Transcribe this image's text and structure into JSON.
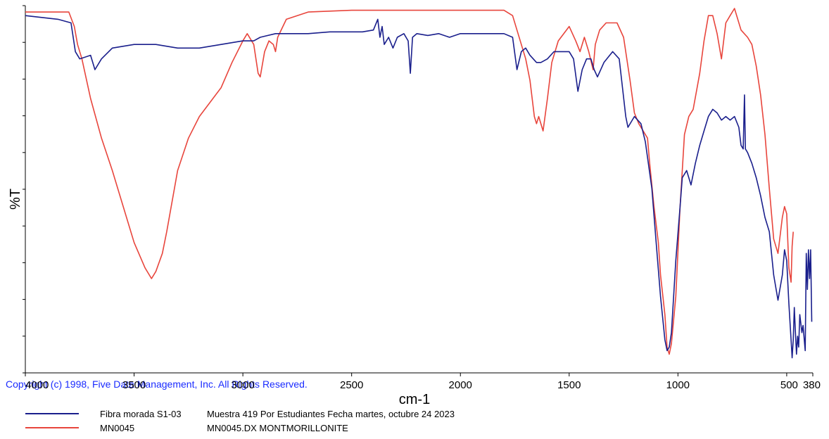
{
  "chart_data": {
    "type": "line",
    "xlabel": "cm-1",
    "ylabel": "%T",
    "xlim": [
      4000,
      380
    ],
    "x_ticks": [
      4000,
      3500,
      3000,
      2500,
      2000,
      1500,
      1000,
      500,
      380
    ],
    "copyright": "Copyright (c) 1998, Five Data Management, Inc. All Rights Reserved.",
    "series": [
      {
        "name": "Fibra morada S1-03",
        "description": "Muestra 419 Por Estudiantes Fecha martes, octubre 24 2023",
        "color": "#1a1f8c",
        "points": [
          [
            4000,
            98
          ],
          [
            3850,
            97
          ],
          [
            3790,
            96
          ],
          [
            3770,
            88
          ],
          [
            3750,
            86
          ],
          [
            3700,
            87
          ],
          [
            3680,
            83
          ],
          [
            3650,
            86
          ],
          [
            3600,
            89
          ],
          [
            3500,
            90
          ],
          [
            3400,
            90
          ],
          [
            3300,
            89
          ],
          [
            3200,
            89
          ],
          [
            3100,
            90
          ],
          [
            3000,
            91
          ],
          [
            2950,
            91
          ],
          [
            2920,
            92
          ],
          [
            2850,
            93
          ],
          [
            2800,
            93
          ],
          [
            2700,
            93
          ],
          [
            2600,
            93.5
          ],
          [
            2450,
            93.5
          ],
          [
            2400,
            94
          ],
          [
            2380,
            97
          ],
          [
            2370,
            92
          ],
          [
            2360,
            95
          ],
          [
            2350,
            90
          ],
          [
            2330,
            92
          ],
          [
            2310,
            89
          ],
          [
            2290,
            92
          ],
          [
            2260,
            93
          ],
          [
            2240,
            91
          ],
          [
            2230,
            82
          ],
          [
            2220,
            92
          ],
          [
            2200,
            93
          ],
          [
            2150,
            92.5
          ],
          [
            2100,
            93
          ],
          [
            2050,
            92
          ],
          [
            2000,
            93
          ],
          [
            1900,
            93
          ],
          [
            1800,
            93
          ],
          [
            1760,
            92
          ],
          [
            1740,
            83
          ],
          [
            1720,
            88
          ],
          [
            1700,
            89
          ],
          [
            1680,
            87
          ],
          [
            1650,
            85
          ],
          [
            1630,
            85
          ],
          [
            1600,
            86
          ],
          [
            1570,
            88
          ],
          [
            1530,
            88
          ],
          [
            1500,
            88
          ],
          [
            1480,
            86
          ],
          [
            1460,
            77
          ],
          [
            1440,
            83
          ],
          [
            1420,
            86
          ],
          [
            1400,
            86
          ],
          [
            1385,
            83
          ],
          [
            1370,
            81
          ],
          [
            1340,
            85
          ],
          [
            1300,
            88
          ],
          [
            1270,
            86
          ],
          [
            1240,
            70
          ],
          [
            1230,
            67
          ],
          [
            1200,
            70
          ],
          [
            1170,
            68
          ],
          [
            1150,
            63
          ],
          [
            1120,
            50
          ],
          [
            1100,
            35
          ],
          [
            1080,
            20
          ],
          [
            1060,
            8
          ],
          [
            1050,
            5
          ],
          [
            1040,
            6
          ],
          [
            1030,
            10
          ],
          [
            1010,
            30
          ],
          [
            990,
            45
          ],
          [
            980,
            53
          ],
          [
            960,
            55
          ],
          [
            940,
            51
          ],
          [
            920,
            57
          ],
          [
            900,
            62
          ],
          [
            880,
            66
          ],
          [
            860,
            70
          ],
          [
            840,
            72
          ],
          [
            820,
            71
          ],
          [
            800,
            69
          ],
          [
            780,
            70
          ],
          [
            760,
            69
          ],
          [
            740,
            70
          ],
          [
            720,
            67
          ],
          [
            710,
            62
          ],
          [
            700,
            61
          ],
          [
            694,
            76
          ],
          [
            690,
            61
          ],
          [
            680,
            60
          ],
          [
            660,
            57
          ],
          [
            640,
            53
          ],
          [
            620,
            48
          ],
          [
            600,
            42
          ],
          [
            580,
            38
          ],
          [
            560,
            26
          ],
          [
            540,
            19
          ],
          [
            520,
            26
          ],
          [
            510,
            33
          ],
          [
            500,
            30
          ],
          [
            490,
            18
          ],
          [
            480,
            8
          ],
          [
            475,
            3
          ],
          [
            470,
            8
          ],
          [
            465,
            17
          ],
          [
            460,
            10
          ],
          [
            455,
            4
          ],
          [
            450,
            9
          ],
          [
            445,
            6
          ],
          [
            440,
            15
          ],
          [
            430,
            10
          ],
          [
            425,
            12
          ],
          [
            415,
            5
          ],
          [
            410,
            32
          ],
          [
            405,
            22
          ],
          [
            400,
            33
          ],
          [
            395,
            25
          ],
          [
            390,
            33
          ],
          [
            385,
            13
          ]
        ]
      },
      {
        "name": "MN0045",
        "description": "MN0045.DX  MONTMORILLONITE",
        "color": "#e8453c",
        "points": [
          [
            4000,
            99
          ],
          [
            3850,
            99
          ],
          [
            3800,
            99
          ],
          [
            3775,
            95
          ],
          [
            3760,
            90
          ],
          [
            3740,
            86
          ],
          [
            3700,
            75
          ],
          [
            3650,
            64
          ],
          [
            3600,
            55
          ],
          [
            3550,
            45
          ],
          [
            3500,
            35
          ],
          [
            3450,
            28
          ],
          [
            3420,
            25
          ],
          [
            3400,
            27
          ],
          [
            3370,
            32
          ],
          [
            3350,
            38
          ],
          [
            3300,
            55
          ],
          [
            3250,
            64
          ],
          [
            3200,
            70
          ],
          [
            3100,
            78
          ],
          [
            3050,
            85
          ],
          [
            3000,
            91
          ],
          [
            2980,
            93
          ],
          [
            2950,
            90
          ],
          [
            2930,
            82
          ],
          [
            2920,
            81
          ],
          [
            2900,
            88
          ],
          [
            2880,
            91
          ],
          [
            2860,
            90
          ],
          [
            2850,
            88
          ],
          [
            2840,
            92
          ],
          [
            2800,
            97
          ],
          [
            2700,
            99
          ],
          [
            2500,
            99.5
          ],
          [
            2000,
            99.5
          ],
          [
            1800,
            99.5
          ],
          [
            1760,
            98
          ],
          [
            1740,
            94
          ],
          [
            1720,
            90
          ],
          [
            1700,
            86
          ],
          [
            1680,
            80
          ],
          [
            1660,
            70
          ],
          [
            1650,
            68
          ],
          [
            1640,
            70
          ],
          [
            1620,
            66
          ],
          [
            1600,
            75
          ],
          [
            1580,
            85
          ],
          [
            1550,
            91
          ],
          [
            1500,
            95
          ],
          [
            1470,
            91
          ],
          [
            1450,
            88
          ],
          [
            1430,
            92
          ],
          [
            1410,
            88
          ],
          [
            1390,
            83
          ],
          [
            1380,
            90
          ],
          [
            1360,
            94
          ],
          [
            1330,
            96
          ],
          [
            1280,
            96
          ],
          [
            1250,
            92
          ],
          [
            1220,
            80
          ],
          [
            1200,
            71
          ],
          [
            1180,
            68
          ],
          [
            1160,
            66
          ],
          [
            1140,
            64
          ],
          [
            1130,
            57
          ],
          [
            1110,
            45
          ],
          [
            1090,
            35
          ],
          [
            1080,
            26
          ],
          [
            1060,
            15
          ],
          [
            1050,
            6
          ],
          [
            1040,
            4
          ],
          [
            1030,
            7
          ],
          [
            1010,
            20
          ],
          [
            990,
            45
          ],
          [
            970,
            65
          ],
          [
            950,
            70
          ],
          [
            930,
            72
          ],
          [
            900,
            82
          ],
          [
            880,
            91
          ],
          [
            860,
            98
          ],
          [
            840,
            98
          ],
          [
            820,
            93
          ],
          [
            800,
            86
          ],
          [
            780,
            96
          ],
          [
            760,
            98
          ],
          [
            740,
            100
          ],
          [
            710,
            94
          ],
          [
            680,
            92
          ],
          [
            660,
            90
          ],
          [
            640,
            84
          ],
          [
            620,
            76
          ],
          [
            600,
            65
          ],
          [
            580,
            50
          ],
          [
            560,
            36
          ],
          [
            540,
            32
          ],
          [
            520,
            42
          ],
          [
            510,
            45
          ],
          [
            500,
            43
          ],
          [
            490,
            28
          ],
          [
            480,
            24
          ],
          [
            475,
            34
          ],
          [
            470,
            38
          ]
        ]
      }
    ]
  }
}
